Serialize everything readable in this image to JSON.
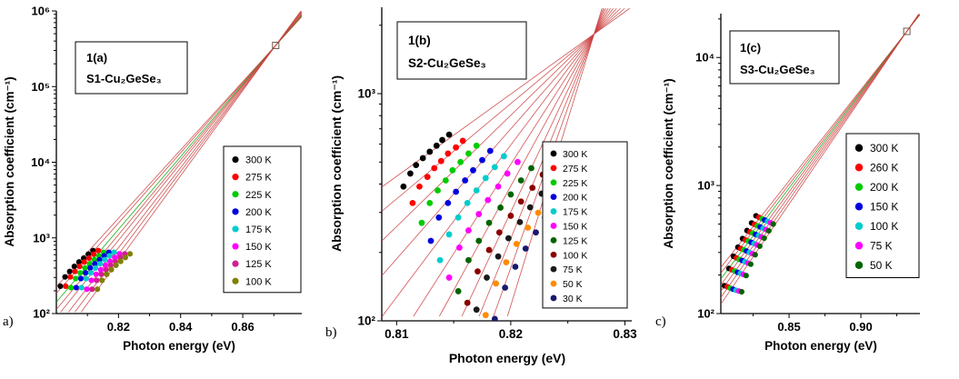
{
  "page": {
    "background": "#ffffff"
  },
  "chart_data": [
    {
      "type": "scatter",
      "corner_label": "a)",
      "inset": {
        "figure_label": "1(a)",
        "sample_label": "S1-Cu₂GeSe₃"
      },
      "xlabel": "Photon energy  (eV)",
      "ylabel": "Absorption coefficient  (cm⁻¹)",
      "xlim": [
        0.8,
        0.879
      ],
      "ylim": [
        100,
        1000000
      ],
      "x_ticks": [
        0.82,
        0.84,
        0.86
      ],
      "x_tick_labels": [
        "0.82",
        "0.84",
        "0.86"
      ],
      "x_minor_ticks": [
        0.81,
        0.83,
        0.85,
        0.87
      ],
      "y_ticks": [
        100,
        1000,
        10000,
        100000,
        1000000
      ],
      "y_tick_labels": [
        "10²",
        "10³",
        "10⁴",
        "10⁵",
        "10⁶"
      ],
      "grid": false,
      "legend_position": "right-middle",
      "fit_focus": {
        "x": 0.8706,
        "y": 350000,
        "marker": "open-square"
      },
      "fit_line_color": "#cc4040",
      "series": [
        {
          "name": "300 K",
          "color": "#000000",
          "x": [
            0.8013,
            0.8028,
            0.8043,
            0.8058,
            0.8073,
            0.8088,
            0.8103,
            0.8118
          ],
          "y": [
            230,
            305,
            360,
            420,
            480,
            540,
            610,
            680
          ]
        },
        {
          "name": "275 K",
          "color": "#ff0000",
          "x": [
            0.803,
            0.8045,
            0.806,
            0.8075,
            0.809,
            0.8105,
            0.812,
            0.8135
          ],
          "y": [
            230,
            305,
            360,
            420,
            480,
            540,
            610,
            680
          ]
        },
        {
          "name": "225 K",
          "color": "#00cc00",
          "fit_color": "#00aa00",
          "x": [
            0.8047,
            0.8062,
            0.8077,
            0.8092,
            0.8107,
            0.8122,
            0.8137,
            0.8152
          ],
          "y": [
            220,
            290,
            345,
            400,
            455,
            515,
            580,
            645
          ]
        },
        {
          "name": "200 K",
          "color": "#0000dd",
          "x": [
            0.8064,
            0.8079,
            0.8094,
            0.8109,
            0.8124,
            0.8139,
            0.8154,
            0.8169
          ],
          "y": [
            220,
            290,
            345,
            400,
            455,
            515,
            580,
            645
          ]
        },
        {
          "name": "175 K",
          "color": "#00cccc",
          "x": [
            0.8081,
            0.8096,
            0.8111,
            0.8126,
            0.8141,
            0.8156,
            0.8171,
            0.8186
          ],
          "y": [
            220,
            290,
            345,
            400,
            455,
            515,
            580,
            645
          ]
        },
        {
          "name": "150 K",
          "color": "#ff00ff",
          "x": [
            0.8098,
            0.8113,
            0.8128,
            0.8143,
            0.8158,
            0.8173,
            0.8188,
            0.8203
          ],
          "y": [
            210,
            275,
            330,
            380,
            435,
            490,
            550,
            615
          ]
        },
        {
          "name": "125 K",
          "color": "#d02090",
          "x": [
            0.8115,
            0.813,
            0.8145,
            0.816,
            0.8175,
            0.819,
            0.8205,
            0.822
          ],
          "y": [
            210,
            275,
            330,
            380,
            435,
            490,
            550,
            615
          ]
        },
        {
          "name": "100 K",
          "color": "#808000",
          "x": [
            0.8132,
            0.8147,
            0.8162,
            0.8177,
            0.8192,
            0.8207,
            0.8222,
            0.8237
          ],
          "y": [
            210,
            275,
            330,
            380,
            435,
            490,
            550,
            615
          ]
        }
      ]
    },
    {
      "type": "scatter",
      "corner_label": "b)",
      "inset": {
        "figure_label": "1(b)",
        "sample_label": "S2-Cu₂GeSe₃"
      },
      "xlabel": "Photon energy (eV)",
      "ylabel": "Absorption coefficient  (cm⁻¹)",
      "xlim": [
        0.8087,
        0.8306
      ],
      "ylim": [
        100,
        2400
      ],
      "x_ticks": [
        0.81,
        0.82,
        0.83
      ],
      "x_tick_labels": [
        "0.81",
        "0.82",
        "0.83"
      ],
      "x_minor_ticks": [
        0.815,
        0.825
      ],
      "y_ticks": [
        100,
        1000
      ],
      "y_tick_labels": [
        "10²",
        "10³"
      ],
      "grid": false,
      "legend_position": "right-middle",
      "fit_focus": {
        "x": 0.8273,
        "y": 1830,
        "marker": "none"
      },
      "fit_line_color": "#cc4040",
      "series": [
        {
          "name": "300 K",
          "color": "#000000",
          "x": [
            0.8106,
            0.8112,
            0.8117,
            0.8123,
            0.8129,
            0.8135,
            0.814,
            0.8146
          ],
          "y": [
            390,
            445,
            485,
            520,
            555,
            590,
            625,
            660
          ]
        },
        {
          "name": "275 K",
          "color": "#ff0000",
          "x": [
            0.8114,
            0.812,
            0.8127,
            0.8133,
            0.8139,
            0.8145,
            0.8152,
            0.8158
          ],
          "y": [
            330,
            390,
            430,
            470,
            505,
            545,
            580,
            620
          ]
        },
        {
          "name": "225 K",
          "color": "#00cc00",
          "x": [
            0.8122,
            0.8129,
            0.8136,
            0.8143,
            0.8149,
            0.8156,
            0.8163,
            0.817
          ],
          "y": [
            270,
            330,
            375,
            415,
            460,
            500,
            545,
            590
          ]
        },
        {
          "name": "200 K",
          "color": "#0000dd",
          "x": [
            0.813,
            0.8137,
            0.8145,
            0.8152,
            0.816,
            0.8167,
            0.8175,
            0.8182
          ],
          "y": [
            225,
            285,
            330,
            370,
            415,
            460,
            510,
            560
          ]
        },
        {
          "name": "175 K",
          "color": "#00cccc",
          "x": [
            0.8138,
            0.8146,
            0.8154,
            0.8162,
            0.817,
            0.8178,
            0.8186,
            0.8194
          ],
          "y": [
            185,
            240,
            285,
            330,
            375,
            425,
            475,
            530
          ]
        },
        {
          "name": "150 K",
          "color": "#ff00ff",
          "x": [
            0.8146,
            0.8155,
            0.8163,
            0.8172,
            0.818,
            0.8189,
            0.8197,
            0.8206
          ],
          "y": [
            155,
            210,
            250,
            295,
            340,
            390,
            445,
            500
          ]
        },
        {
          "name": "125 K",
          "color": "#006400",
          "x": [
            0.8154,
            0.8163,
            0.8172,
            0.8181,
            0.8191,
            0.82,
            0.8209,
            0.8218
          ],
          "y": [
            135,
            185,
            225,
            270,
            315,
            360,
            415,
            470
          ]
        },
        {
          "name": "100 K",
          "color": "#8b0000",
          "x": [
            0.8162,
            0.8171,
            0.8181,
            0.819,
            0.82,
            0.8209,
            0.8219,
            0.8228
          ],
          "y": [
            120,
            165,
            205,
            245,
            290,
            335,
            385,
            440
          ]
        },
        {
          "name": "75 K",
          "color": "#1a1a1a",
          "x": [
            0.817,
            0.8179,
            0.8189,
            0.8198,
            0.8208,
            0.8217,
            0.8227,
            0.8236
          ],
          "y": [
            112,
            155,
            192,
            231,
            272,
            316,
            363,
            415
          ]
        },
        {
          "name": "50 K",
          "color": "#ff8c00",
          "x": [
            0.8178,
            0.8187,
            0.8196,
            0.8205,
            0.8215,
            0.8224,
            0.8233,
            0.8242
          ],
          "y": [
            106,
            146,
            181,
            218,
            257,
            299,
            343,
            390
          ]
        },
        {
          "name": "30 K",
          "color": "#191970",
          "x": [
            0.8186,
            0.8195,
            0.8204,
            0.8213,
            0.8222,
            0.823,
            0.8239,
            0.8248
          ],
          "y": [
            102,
            140,
            173,
            208,
            245,
            285,
            326,
            370
          ]
        }
      ]
    },
    {
      "type": "scatter",
      "corner_label": "c)",
      "inset": {
        "figure_label": "1(c)",
        "sample_label": "S3-Cu₂GeSe₃"
      },
      "xlabel": "Photon energy (eV)",
      "ylabel": "Absorption coefficient  (cm⁻¹)",
      "xlim": [
        0.8025,
        0.9411
      ],
      "ylim": [
        100,
        22000
      ],
      "x_ticks": [
        0.85,
        0.9
      ],
      "x_tick_labels": [
        "0.85",
        "0.90"
      ],
      "x_minor_ticks": [
        0.825,
        0.875,
        0.925
      ],
      "y_ticks": [
        100,
        1000,
        10000
      ],
      "y_tick_labels": [
        "10²",
        "10³",
        "10⁴"
      ],
      "grid": false,
      "legend_position": "right-middle",
      "fit_focus": {
        "x": 0.932,
        "y": 16000,
        "marker": "open-square"
      },
      "fit_line_color": "#cc4040",
      "series": [
        {
          "name": "300 K",
          "color": "#000000",
          "x": [
            0.805,
            0.8081,
            0.8113,
            0.8144,
            0.8176,
            0.8207,
            0.8239,
            0.827
          ],
          "y": [
            165,
            225,
            280,
            330,
            385,
            445,
            510,
            580
          ]
        },
        {
          "name": "260 K",
          "color": "#ff0000",
          "x": [
            0.807,
            0.8101,
            0.8133,
            0.8164,
            0.8196,
            0.8227,
            0.8259,
            0.829
          ],
          "y": [
            162,
            220,
            272,
            322,
            376,
            434,
            497,
            565
          ]
        },
        {
          "name": "200 K",
          "color": "#00cc00",
          "fit_color": "#00aa00",
          "x": [
            0.809,
            0.8121,
            0.8153,
            0.8184,
            0.8216,
            0.8247,
            0.8279,
            0.831
          ],
          "y": [
            158,
            215,
            265,
            315,
            368,
            425,
            485,
            550
          ]
        },
        {
          "name": "150 K",
          "color": "#0000dd",
          "x": [
            0.811,
            0.8141,
            0.8173,
            0.8204,
            0.8236,
            0.8267,
            0.8299,
            0.833
          ],
          "y": [
            155,
            210,
            260,
            308,
            360,
            415,
            475,
            538
          ]
        },
        {
          "name": "100 K",
          "color": "#00cccc",
          "x": [
            0.813,
            0.8161,
            0.8193,
            0.8224,
            0.8256,
            0.8287,
            0.8319,
            0.835
          ],
          "y": [
            152,
            206,
            254,
            300,
            352,
            406,
            463,
            525
          ]
        },
        {
          "name": "75 K",
          "color": "#ff00ff",
          "x": [
            0.815,
            0.8181,
            0.8213,
            0.8244,
            0.8276,
            0.8307,
            0.8339,
            0.837
          ],
          "y": [
            150,
            202,
            248,
            294,
            344,
            397,
            453,
            513
          ]
        },
        {
          "name": "50 K",
          "color": "#006400",
          "x": [
            0.817,
            0.8201,
            0.8233,
            0.8264,
            0.8296,
            0.8327,
            0.8359,
            0.839
          ],
          "y": [
            148,
            198,
            243,
            288,
            336,
            388,
            443,
            500
          ]
        }
      ]
    }
  ]
}
